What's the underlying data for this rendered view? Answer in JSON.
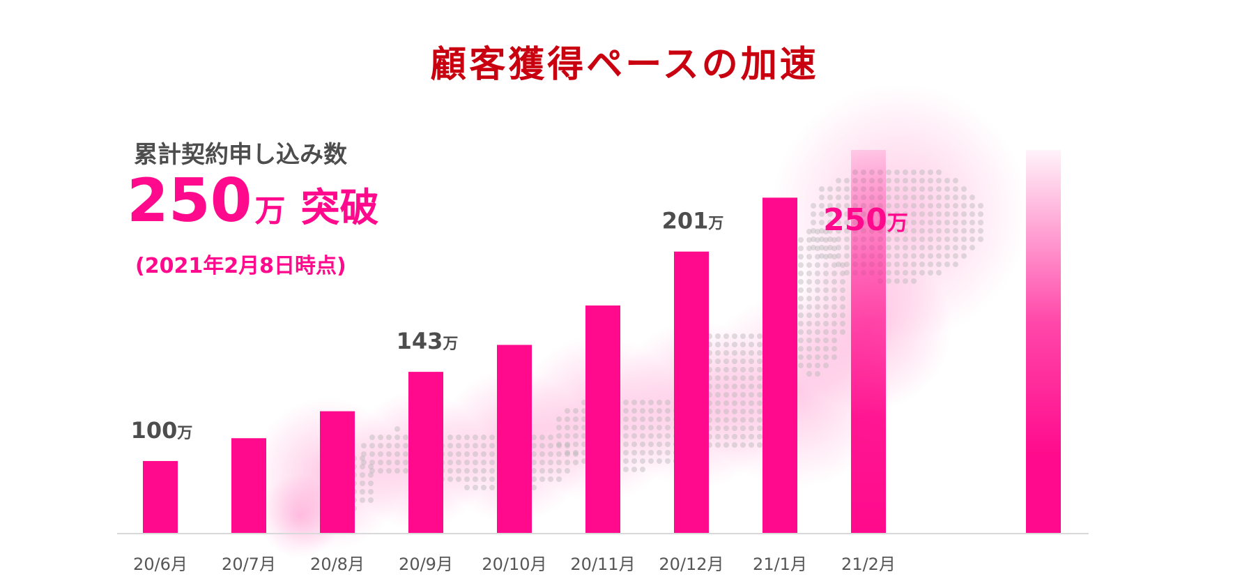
{
  "page": {
    "title": "顧客獲得ペースの加速",
    "kpi": {
      "label": "累計契約申し込み数",
      "value": "250",
      "unit": "万",
      "suffix": "突破",
      "note": "(2021年2月8日時点)"
    }
  },
  "colors": {
    "title": "#c8000f",
    "accent": "#ff0a8c",
    "label_gray": "#4d4d4d",
    "axis_gray": "#555555",
    "map_dots": "#b9b9b9"
  },
  "chart_data": {
    "type": "bar",
    "categories": [
      "20/6月",
      "20/7月",
      "20/8月",
      "20/9月",
      "20/10月",
      "20/11月",
      "20/12月",
      "21/1月",
      "21/2月"
    ],
    "values": [
      100,
      111,
      124,
      143,
      156,
      175,
      201,
      227,
      250
    ],
    "value_labels": [
      {
        "index": 0,
        "number": "100",
        "unit": "万"
      },
      {
        "index": 3,
        "number": "143",
        "unit": "万"
      },
      {
        "index": 6,
        "number": "201",
        "unit": "万"
      },
      {
        "index": 8,
        "number": "250",
        "unit": "万"
      }
    ],
    "highlight_index": 8,
    "ylim": [
      65,
      250
    ],
    "extra_gradient_bar_value": 250,
    "grid": false,
    "legend": "none",
    "title": "",
    "xlabel": "",
    "ylabel": ""
  }
}
